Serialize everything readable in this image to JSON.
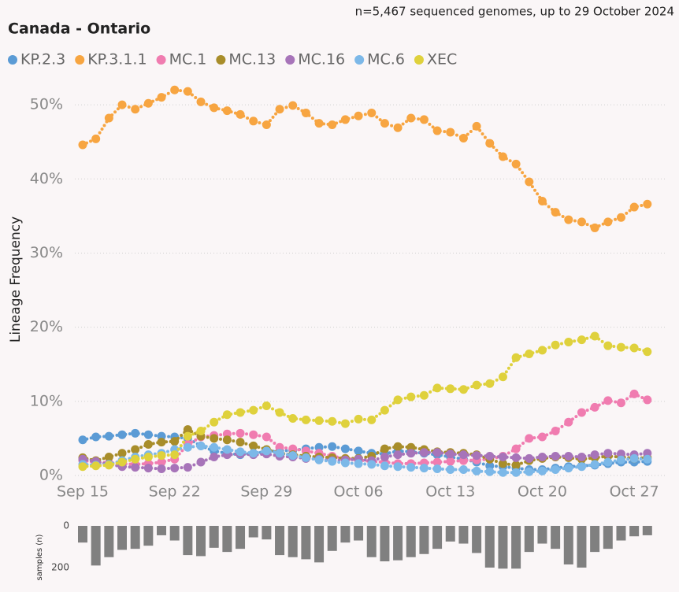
{
  "chart_data": [
    {
      "type": "line",
      "title": "Canada - Ontario",
      "subtitle": "n=5,467 sequenced genomes, up to 29 October 2024",
      "ylabel": "Lineage Frequency",
      "categories": [
        "Sep 15",
        null,
        null,
        null,
        null,
        null,
        null,
        "Sep 22",
        null,
        null,
        null,
        null,
        null,
        null,
        "Sep 29",
        null,
        null,
        null,
        null,
        null,
        null,
        "Oct 06",
        null,
        null,
        null,
        null,
        null,
        null,
        "Oct 13",
        null,
        null,
        null,
        null,
        null,
        null,
        "Oct 20",
        null,
        null,
        null,
        null,
        null,
        null,
        "Oct 27",
        null
      ],
      "ylim": [
        0,
        55
      ],
      "yticks": [
        {
          "value": 0,
          "label": "0%"
        },
        {
          "value": 10,
          "label": "10%"
        },
        {
          "value": 20,
          "label": "20%"
        },
        {
          "value": 30,
          "label": "30%"
        },
        {
          "value": 40,
          "label": "40%"
        },
        {
          "value": 50,
          "label": "50%"
        }
      ],
      "grid": true,
      "legend": "top",
      "series": [
        {
          "name": "KP.2.3",
          "color": "#5b9bd5",
          "values": [
            4.8,
            5.2,
            5.3,
            5.5,
            5.7,
            5.5,
            5.3,
            5.2,
            5.0,
            4.0,
            3.3,
            3.0,
            2.8,
            3.0,
            3.2,
            3.3,
            3.4,
            3.6,
            3.8,
            3.9,
            3.6,
            3.3,
            3.0,
            2.9,
            3.3,
            3.2,
            3.0,
            2.8,
            2.5,
            2.2,
            1.8,
            1.3,
            1.2,
            1.0,
            0.8,
            0.8,
            1.0,
            1.2,
            1.3,
            1.4,
            1.6,
            1.8,
            1.8,
            1.9
          ]
        },
        {
          "name": "KP.3.1.1",
          "color": "#f7a541",
          "values": [
            44.6,
            45.4,
            48.2,
            50.0,
            49.4,
            50.2,
            51.0,
            52.0,
            51.8,
            50.4,
            49.6,
            49.2,
            48.7,
            47.8,
            47.3,
            49.4,
            49.9,
            48.9,
            47.5,
            47.3,
            48.0,
            48.5,
            48.9,
            47.5,
            46.9,
            48.2,
            48.0,
            46.5,
            46.3,
            45.5,
            47.1,
            44.8,
            43.0,
            42.0,
            39.6,
            37.0,
            35.5,
            34.5,
            34.2,
            33.4,
            34.2,
            34.8,
            36.2,
            36.6
          ]
        },
        {
          "name": "MC.1",
          "color": "#f07cb0",
          "values": [
            2.0,
            1.8,
            1.7,
            1.6,
            1.5,
            1.6,
            1.8,
            2.2,
            4.2,
            5.2,
            5.4,
            5.6,
            5.7,
            5.5,
            5.2,
            3.8,
            3.6,
            3.3,
            3.0,
            2.6,
            2.3,
            2.1,
            1.9,
            1.8,
            1.6,
            1.6,
            1.7,
            1.8,
            1.9,
            2.0,
            2.1,
            2.2,
            2.6,
            3.6,
            5.0,
            5.2,
            6.0,
            7.2,
            8.5,
            9.2,
            10.1,
            9.8,
            11.0,
            10.2
          ]
        },
        {
          "name": "MC.13",
          "color": "#a88d2a",
          "values": [
            2.4,
            2.0,
            2.5,
            3.0,
            3.5,
            4.2,
            4.5,
            4.6,
            6.2,
            5.3,
            5.0,
            4.8,
            4.5,
            4.0,
            3.5,
            3.0,
            2.8,
            2.6,
            2.5,
            2.4,
            2.3,
            2.3,
            2.6,
            3.6,
            3.9,
            3.8,
            3.5,
            3.2,
            3.1,
            3.0,
            2.8,
            2.2,
            1.6,
            1.4,
            2.0,
            2.3,
            2.5,
            2.4,
            2.2,
            2.4,
            2.6,
            2.5,
            2.3,
            2.4
          ]
        },
        {
          "name": "MC.16",
          "color": "#a774b9",
          "values": [
            2.2,
            1.9,
            1.5,
            1.2,
            1.1,
            1.0,
            0.9,
            1.0,
            1.1,
            1.8,
            2.5,
            2.8,
            2.9,
            2.8,
            2.9,
            2.6,
            2.5,
            2.3,
            2.2,
            2.0,
            2.1,
            2.2,
            2.0,
            2.5,
            2.8,
            3.0,
            3.1,
            3.1,
            2.9,
            2.8,
            2.7,
            2.6,
            2.5,
            2.4,
            2.3,
            2.5,
            2.6,
            2.6,
            2.5,
            2.8,
            3.0,
            2.9,
            2.8,
            3.0
          ]
        },
        {
          "name": "MC.6",
          "color": "#7cb8e8",
          "values": [
            1.5,
            1.4,
            1.5,
            2.0,
            2.5,
            2.8,
            3.0,
            3.5,
            3.8,
            4.0,
            3.8,
            3.5,
            3.2,
            3.0,
            3.3,
            3.0,
            2.7,
            2.4,
            2.1,
            1.9,
            1.7,
            1.6,
            1.5,
            1.3,
            1.2,
            1.1,
            1.0,
            0.9,
            0.8,
            0.8,
            0.6,
            0.5,
            0.4,
            0.4,
            0.5,
            0.6,
            0.8,
            1.0,
            1.2,
            1.5,
            1.8,
            2.1,
            2.3,
            2.2
          ]
        },
        {
          "name": "XEC",
          "color": "#dfd13c",
          "values": [
            1.2,
            1.3,
            1.4,
            1.8,
            2.2,
            2.5,
            2.7,
            2.8,
            5.3,
            6.0,
            7.2,
            8.2,
            8.5,
            8.8,
            9.4,
            8.5,
            7.7,
            7.5,
            7.4,
            7.3,
            7.0,
            7.6,
            7.5,
            8.8,
            10.2,
            10.6,
            10.8,
            11.8,
            11.7,
            11.6,
            12.2,
            12.4,
            13.3,
            15.9,
            16.4,
            16.9,
            17.6,
            18.0,
            18.3,
            18.8,
            17.5,
            17.3,
            17.2,
            16.7
          ]
        }
      ]
    },
    {
      "type": "bar",
      "ylabel": "samples (n)",
      "color": "#808080",
      "ylim": [
        0,
        220
      ],
      "yticks": [
        0,
        200
      ],
      "values": [
        80,
        190,
        150,
        115,
        110,
        95,
        45,
        70,
        140,
        145,
        105,
        125,
        110,
        55,
        65,
        140,
        150,
        160,
        175,
        120,
        80,
        70,
        150,
        170,
        165,
        150,
        135,
        110,
        75,
        85,
        130,
        200,
        205,
        205,
        125,
        85,
        110,
        185,
        200,
        125,
        110,
        70,
        50,
        45
      ]
    }
  ]
}
